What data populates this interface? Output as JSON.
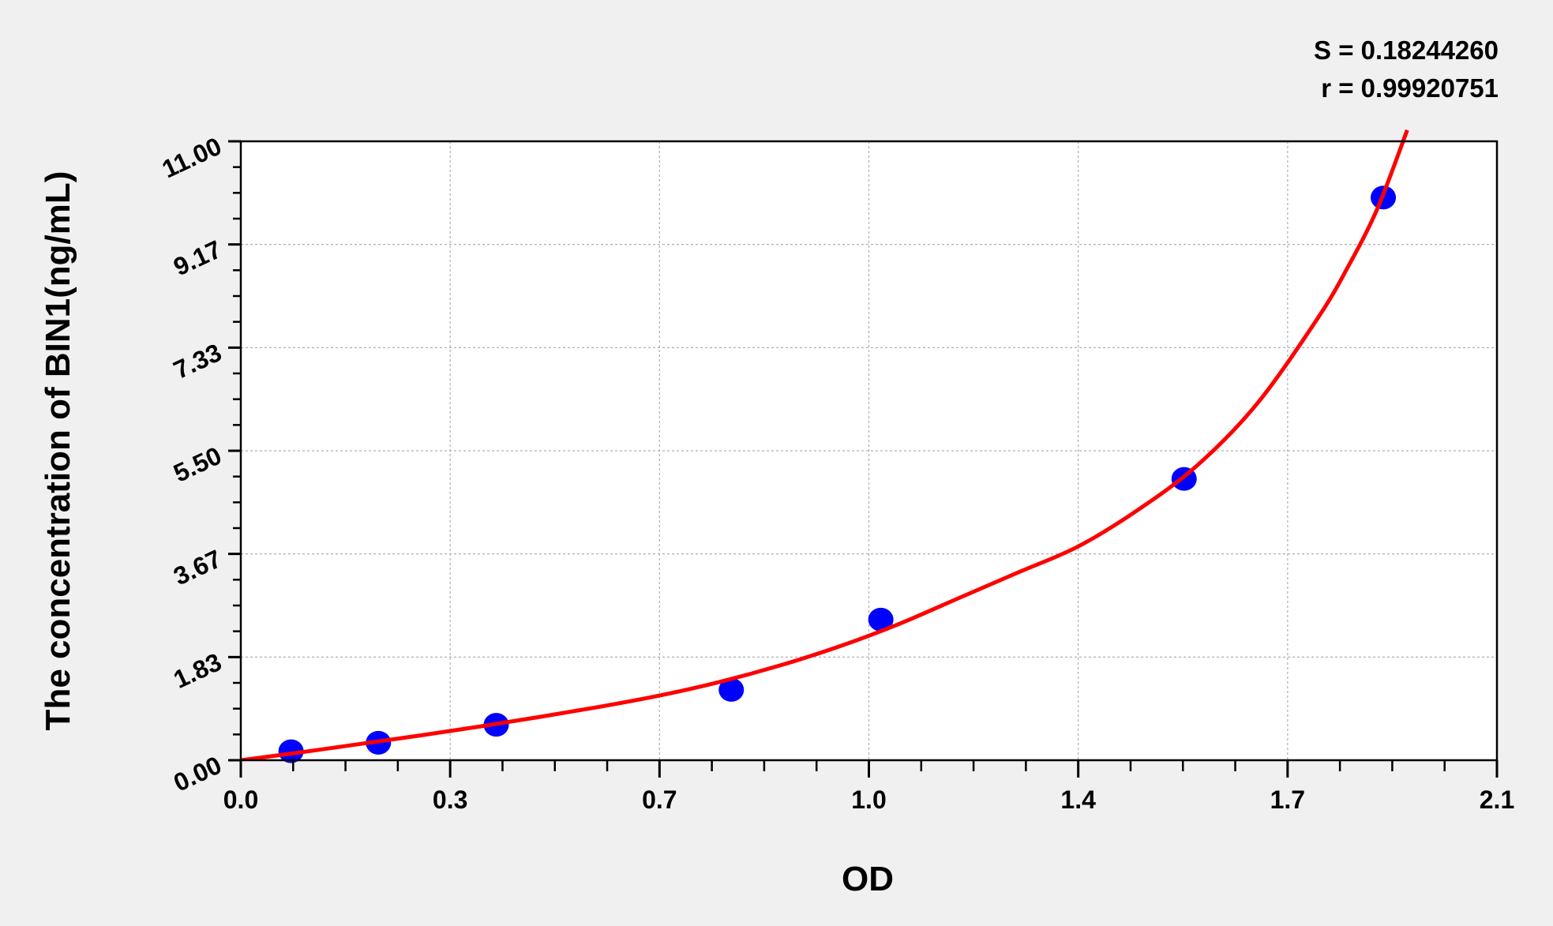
{
  "chart_data": {
    "type": "scatter",
    "title": "",
    "xlabel": "OD",
    "ylabel": "The concentration of BIN1(ng/mL)",
    "xlim": [
      0,
      2.1
    ],
    "ylim": [
      0,
      11
    ],
    "x_ticks": [
      0,
      0.35,
      0.7,
      1.05,
      1.4,
      1.75,
      2.1
    ],
    "x_tick_labels": [
      "0.0",
      "0.3",
      "0.7",
      "1.0",
      "1.4",
      "1.7",
      "2.1"
    ],
    "y_ticks": [
      0,
      1.833,
      3.667,
      5.5,
      7.333,
      9.167,
      11
    ],
    "y_tick_labels": [
      "0.00",
      "1.83",
      "3.67",
      "5.50",
      "7.33",
      "9.17",
      "11.00"
    ],
    "grid": true,
    "stats": [
      "S = 0.18244260",
      "r = 0.99920751"
    ],
    "points": {
      "x": [
        0.084,
        0.23,
        0.427,
        0.82,
        1.07,
        1.577,
        1.91
      ],
      "y": [
        0.16,
        0.31,
        0.63,
        1.25,
        2.5,
        5.0,
        10.0
      ],
      "color": "#0000ff"
    },
    "fit_curve": {
      "x": [
        0,
        0.1,
        0.2,
        0.3,
        0.4,
        0.5,
        0.6,
        0.7,
        0.8,
        0.9,
        1.0,
        1.1,
        1.2,
        1.3,
        1.4,
        1.5,
        1.6,
        1.7,
        1.8,
        1.85,
        1.9,
        1.95
      ],
      "y": [
        0,
        0.14,
        0.29,
        0.44,
        0.6,
        0.77,
        0.95,
        1.15,
        1.39,
        1.68,
        2.02,
        2.42,
        2.88,
        3.34,
        3.8,
        4.45,
        5.25,
        6.35,
        7.85,
        8.75,
        9.8,
        11.2
      ],
      "color": "#ff0000"
    }
  }
}
